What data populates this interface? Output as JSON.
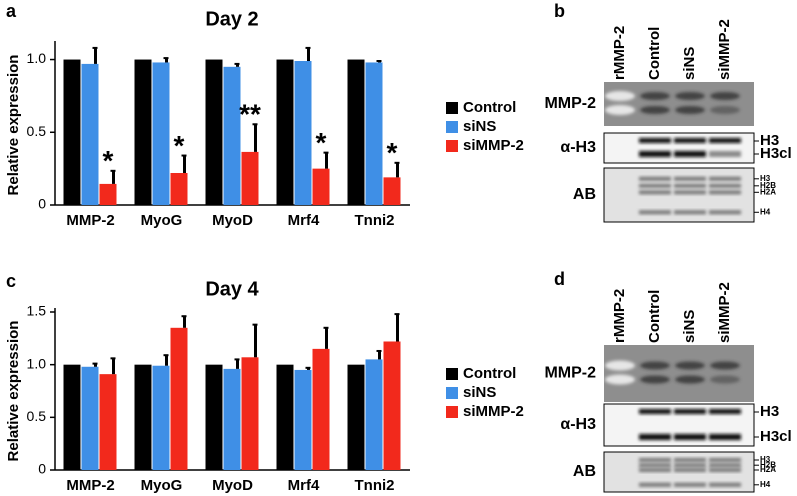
{
  "chart_data": [
    {
      "type": "bar",
      "panel_label": "a",
      "title": "Day 2",
      "y_label": "Relative expression",
      "categories": [
        "MMP-2",
        "MyoG",
        "MyoD",
        "Mrf4",
        "Tnni2"
      ],
      "series": [
        {
          "name": "Control",
          "color": "#000000",
          "values": [
            1,
            1,
            1,
            1,
            1
          ]
        },
        {
          "name": "siNS",
          "color": "#3f8fe6",
          "values": [
            0.97,
            0.98,
            0.95,
            0.99,
            0.98
          ],
          "errors": [
            0.11,
            0.03,
            0.02,
            0.09,
            0.01
          ]
        },
        {
          "name": "siMMP-2",
          "color": "#f2291c",
          "values": [
            0.145,
            0.22,
            0.365,
            0.25,
            0.19
          ],
          "errors": [
            0.09,
            0.12,
            0.19,
            0.11,
            0.1
          ]
        }
      ],
      "annotations": [
        "*",
        "*",
        "**",
        "*",
        "*"
      ],
      "ylim": [
        0,
        1.1
      ],
      "yticks": [
        0,
        0.5,
        {
          "value": 1,
          "label": "1.0"
        }
      ],
      "legend": "right"
    },
    {
      "type": "bar",
      "panel_label": "c",
      "title": "Day 4",
      "y_label": "Relative expression",
      "categories": [
        "MMP-2",
        "MyoG",
        "MyoD",
        "Mrf4",
        "Tnni2"
      ],
      "series": [
        {
          "name": "Control",
          "color": "#000000",
          "values": [
            1,
            1,
            1,
            1,
            1
          ]
        },
        {
          "name": "siNS",
          "color": "#3f8fe6",
          "values": [
            0.98,
            0.99,
            0.96,
            0.95,
            1.05
          ],
          "errors": [
            0.03,
            0.1,
            0.09,
            0.02,
            0.08
          ]
        },
        {
          "name": "siMMP-2",
          "color": "#f2291c",
          "values": [
            0.91,
            1.35,
            1.07,
            1.15,
            1.22
          ],
          "errors": [
            0.15,
            0.11,
            0.31,
            0.2,
            0.26
          ]
        }
      ],
      "ylim": [
        0,
        1.5
      ],
      "yticks": [
        0,
        0.5,
        {
          "value": 1,
          "label": "1.0"
        },
        1.5
      ],
      "legend": "right"
    }
  ],
  "gels": [
    {
      "panel_label": "b",
      "lanes": [
        "rMMP-2",
        "Control",
        "siNS",
        "siMMP-2"
      ],
      "rows": [
        {
          "label": "MMP-2"
        },
        {
          "label": "α-H3",
          "markers": [
            "H3",
            "H3cl"
          ]
        },
        {
          "label": "AB",
          "markers": [
            "H3",
            "H2B",
            "H2A",
            "H4"
          ]
        }
      ]
    },
    {
      "panel_label": "d",
      "lanes": [
        "rMMP-2",
        "Control",
        "siNS",
        "siMMP-2"
      ],
      "rows": [
        {
          "label": "MMP-2"
        },
        {
          "label": "α-H3",
          "markers": [
            "H3",
            "H3cl"
          ]
        },
        {
          "label": "AB",
          "markers": [
            "H3",
            "H2B",
            "H2A",
            "H4"
          ]
        }
      ]
    }
  ]
}
